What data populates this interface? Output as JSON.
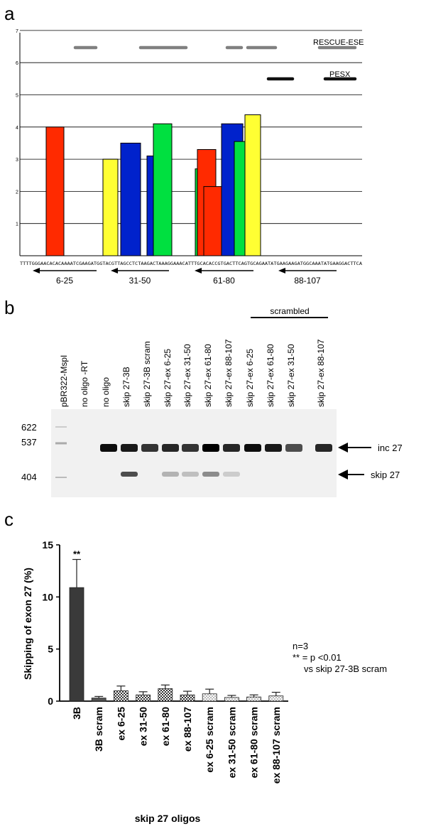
{
  "panels": {
    "a": "a",
    "b": "b",
    "c": "c"
  },
  "panel_a": {
    "yticks": [
      "1",
      "2",
      "3",
      "4",
      "5",
      "6",
      "7"
    ],
    "rescue_label": "RESCUE-ESE",
    "pesx_label": "PESX",
    "sequence": "TTTTGGGAACACACAAAATCGAAGATGGTACGTTAGCCTCTAAGACTAAAGGAAACATTTGCACACCGTGACTTCAGTGCAGAATATGAAGAAGATGGCAAATATGAAGGACTTCA",
    "oligo_labels": [
      "6-25",
      "31-50",
      "61-80",
      "88-107"
    ]
  },
  "panel_b": {
    "lanes": [
      "pBR322-MspI",
      "no oligo -RT",
      "no oligo",
      "skip 27-3B",
      "skip 27-3B scram",
      "skip 27-ex 6-25",
      "skip 27-ex 31-50",
      "skip 27-ex 61-80",
      "skip 27-ex 88-107",
      "skip 27-ex 6-25",
      "skip 27-ex 61-80",
      "skip 27-ex 31-50",
      "skip 27-ex 88-107"
    ],
    "scrambled_label": "scrambled",
    "markers": [
      "622",
      "537",
      "404"
    ],
    "band_labels": {
      "inc": "inc 27",
      "skip": "skip 27"
    }
  },
  "chart_data": {
    "type": "bar",
    "categories": [
      "3B",
      "3B scram",
      "ex 6-25",
      "ex 31-50",
      "ex 61-80",
      "ex 88-107",
      "ex 6-25 scram",
      "ex 31-50 scram",
      "ex 61-80 scram",
      "ex 88-107 scram"
    ],
    "values": [
      10.9,
      0.3,
      1.0,
      0.6,
      1.2,
      0.6,
      0.7,
      0.35,
      0.4,
      0.5
    ],
    "errors": [
      2.7,
      0.15,
      0.45,
      0.3,
      0.35,
      0.35,
      0.45,
      0.2,
      0.2,
      0.35
    ],
    "ylabel": "Skipping of exon 27 (%)",
    "xlabel": "skip 27 oligos",
    "ylim": [
      0,
      15
    ],
    "yticks": [
      "0",
      "5",
      "10",
      "15"
    ],
    "significance": "**",
    "annotation": [
      "n=3",
      "** = p <0.01",
      "vs skip 27-3B scram"
    ]
  },
  "colors": {
    "red": "#ff2a00",
    "blue": "#0022cc",
    "green": "#00e040",
    "yellow": "#ffff33",
    "dark_bar": "#3a3a3a"
  }
}
